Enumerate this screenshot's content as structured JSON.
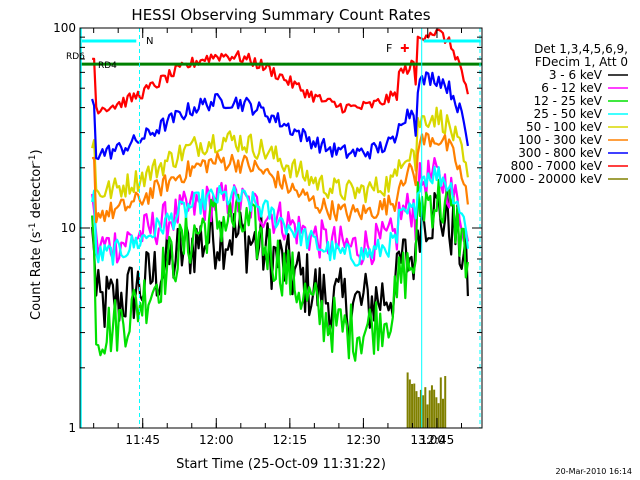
{
  "chart_data": {
    "type": "line",
    "title": "HESSI Observing Summary Count Rates",
    "xlabel": "Start Time (25-Oct-09 11:31:22)",
    "ylabel_prefix": "Count Rate (s",
    "ylabel_exp1": "-1",
    "ylabel_mid": " detector",
    "ylabel_exp2": "-1",
    "ylabel_suffix": ")",
    "yscale": "log",
    "xlim": [
      0,
      100
    ],
    "ylim": [
      1,
      100
    ],
    "x_ticks": [
      {
        "label": "11:45",
        "x": 17
      },
      {
        "label": "12:00",
        "x": 35
      },
      {
        "label": "12:15",
        "x": 53
      },
      {
        "label": "12:30",
        "x": 71
      },
      {
        "label": "12:45",
        "x": 89
      }
    ],
    "x_tick_extra": {
      "label": "13:00",
      "x": 107
    },
    "y_ticks": [
      {
        "label": "1",
        "value": 1
      },
      {
        "label": "10",
        "value": 10
      },
      {
        "label": "100",
        "value": 100
      }
    ],
    "legend_header": [
      "Det 1,3,4,5,6,9,",
      "FDecim 1, Att 0"
    ],
    "series": [
      {
        "name": "3 - 6 keV",
        "color": "#000000",
        "base": 6.2,
        "amp": 1.5,
        "noise": 0.35
      },
      {
        "name": "6 - 12 keV",
        "color": "#ff00ff",
        "base": 10.5,
        "amp": 1.3,
        "noise": 0.2
      },
      {
        "name": "12 - 25 keV",
        "color": "#00e000",
        "base": 5.8,
        "amp": 1.9,
        "noise": 0.3
      },
      {
        "name": "25 - 50 keV",
        "color": "#00ffff",
        "base": 10.2,
        "amp": 1.4,
        "noise": 0.12
      },
      {
        "name": "50 - 100 keV",
        "color": "#d8d800",
        "base": 20.5,
        "amp": 1.35,
        "noise": 0.12
      },
      {
        "name": "100 - 300 keV",
        "color": "#ff8000",
        "base": 16.0,
        "amp": 1.35,
        "noise": 0.1
      },
      {
        "name": "300 - 800 keV",
        "color": "#0000ff",
        "base": 32.0,
        "amp": 1.35,
        "noise": 0.08
      },
      {
        "name": "800 - 7000 keV",
        "color": "#ff0000",
        "base": 54.0,
        "amp": 1.35,
        "noise": 0.06
      },
      {
        "name": "7000 - 20000 keV",
        "color": "#808000",
        "base": 1.6,
        "amp": 1.0,
        "noise": 0.3
      }
    ],
    "markers": {
      "rd6": "RD6",
      "rd4": "RD4",
      "n": "N",
      "f": "F"
    },
    "green_level": 66,
    "cyan_vlines_x": [
      14.8,
      85.0,
      99.5
    ]
  },
  "timestamp": "20-Mar-2010 16:14"
}
